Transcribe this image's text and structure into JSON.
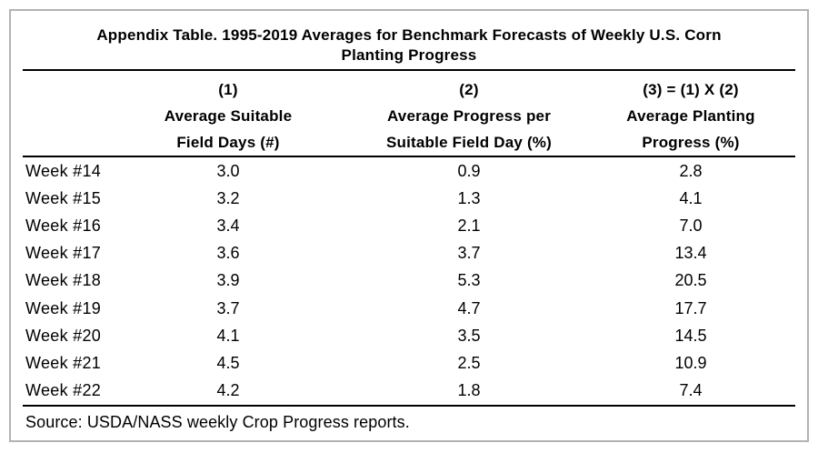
{
  "page": {
    "title_line1": "Appendix Table. 1995-2019 Averages for Benchmark Forecasts of Weekly U.S. Corn",
    "title_line2": "Planting Progress",
    "source_note": "Source: USDA/NASS weekly Crop Progress reports."
  },
  "table": {
    "header": {
      "col1_id": "(1)",
      "col2_id": "(2)",
      "col3_id": "(3) = (1) X (2)",
      "col1_name_line1": "Average Suitable",
      "col1_name_line2": "Field Days (#)",
      "col2_name_line1": "Average Progress per",
      "col2_name_line2": "Suitable Field Day (%)",
      "col3_name_line1": "Average Planting",
      "col3_name_line2": "Progress (%)"
    },
    "rows": [
      {
        "week": "Week #14",
        "suitable_field_days": "3.0",
        "progress_per_day": "0.9",
        "planting_progress": "2.8"
      },
      {
        "week": "Week #15",
        "suitable_field_days": "3.2",
        "progress_per_day": "1.3",
        "planting_progress": "4.1"
      },
      {
        "week": "Week #16",
        "suitable_field_days": "3.4",
        "progress_per_day": "2.1",
        "planting_progress": "7.0"
      },
      {
        "week": "Week #17",
        "suitable_field_days": "3.6",
        "progress_per_day": "3.7",
        "planting_progress": "13.4"
      },
      {
        "week": "Week #18",
        "suitable_field_days": "3.9",
        "progress_per_day": "5.3",
        "planting_progress": "20.5"
      },
      {
        "week": "Week #19",
        "suitable_field_days": "3.7",
        "progress_per_day": "4.7",
        "planting_progress": "17.7"
      },
      {
        "week": "Week #20",
        "suitable_field_days": "4.1",
        "progress_per_day": "3.5",
        "planting_progress": "14.5"
      },
      {
        "week": "Week #21",
        "suitable_field_days": "4.5",
        "progress_per_day": "2.5",
        "planting_progress": "10.9"
      },
      {
        "week": "Week #22",
        "suitable_field_days": "4.2",
        "progress_per_day": "1.8",
        "planting_progress": "7.4"
      }
    ]
  },
  "chart_data": {
    "type": "table",
    "title": "Appendix Table. 1995-2019 Averages for Benchmark Forecasts of Weekly U.S. Corn Planting Progress",
    "columns": [
      "Week",
      "(1) Average Suitable Field Days (#)",
      "(2) Average Progress per Suitable Field Day (%)",
      "(3) = (1) X (2) Average Planting Progress (%)"
    ],
    "rows": [
      [
        "Week #14",
        3.0,
        0.9,
        2.8
      ],
      [
        "Week #15",
        3.2,
        1.3,
        4.1
      ],
      [
        "Week #16",
        3.4,
        2.1,
        7.0
      ],
      [
        "Week #17",
        3.6,
        3.7,
        13.4
      ],
      [
        "Week #18",
        3.9,
        5.3,
        20.5
      ],
      [
        "Week #19",
        3.7,
        4.7,
        17.7
      ],
      [
        "Week #20",
        4.1,
        3.5,
        14.5
      ],
      [
        "Week #21",
        4.5,
        2.5,
        10.9
      ],
      [
        "Week #22",
        4.2,
        1.8,
        7.4
      ]
    ],
    "source": "Source: USDA/NASS weekly Crop Progress reports."
  },
  "colors": {
    "background": "#ffffff",
    "text": "#000000",
    "rule": "#000000",
    "frame_border": "#b3b3b3"
  }
}
